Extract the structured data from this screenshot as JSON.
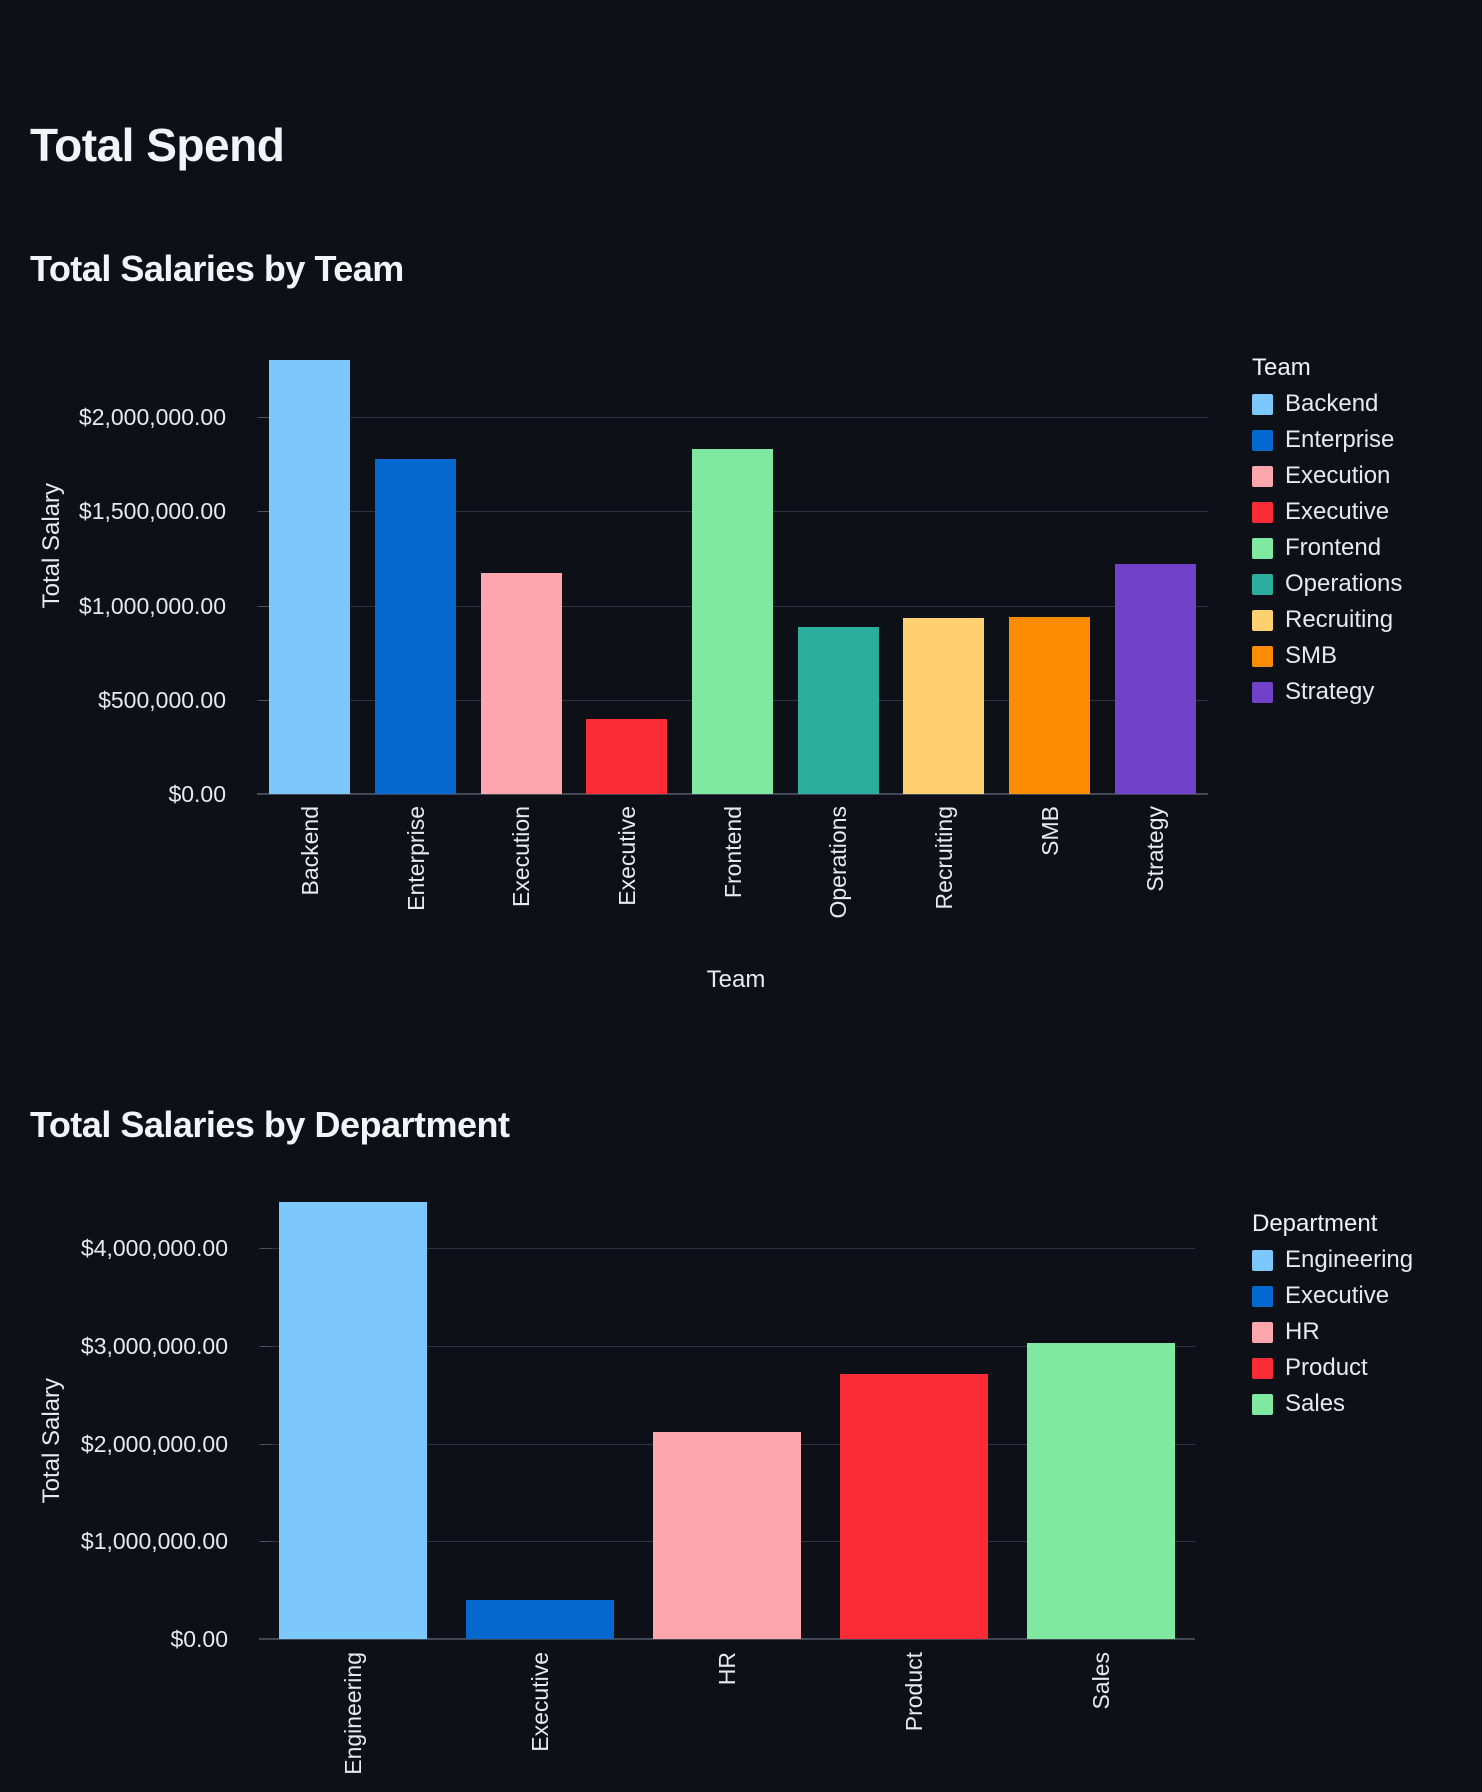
{
  "page": {
    "title": "Total Spend"
  },
  "colors": {
    "background": "#0d1117",
    "heading_text": "#f2f5f8",
    "label_text": "#e6eaef",
    "gridline": "#2e333d",
    "axis_line": "#414754"
  },
  "chart_data": [
    {
      "type": "bar",
      "title": "Total Salaries by Team",
      "xlabel": "Team",
      "ylabel": "Total Salary",
      "categories": [
        "Backend",
        "Enterprise",
        "Execution",
        "Executive",
        "Frontend",
        "Operations",
        "Recruiting",
        "SMB",
        "Strategy"
      ],
      "values": [
        2300000,
        1775000,
        1170000,
        400000,
        1830000,
        885000,
        935000,
        940000,
        1220000
      ],
      "bar_colors": [
        "#7cc7fc",
        "#0568ce",
        "#ffa5ad",
        "#fb2c36",
        "#7fe9a1",
        "#2cad9e",
        "#ffd06f",
        "#fc8c00",
        "#7141ca"
      ],
      "ylim": [
        0,
        2570000
      ],
      "yticks": [
        0,
        500000,
        1000000,
        1500000,
        2000000
      ],
      "ytick_labels": [
        "$0.00",
        "$500,000.00",
        "$1,000,000.00",
        "$1,500,000.00",
        "$2,000,000.00"
      ],
      "grid": true,
      "legend": {
        "title": "Team",
        "position": "right",
        "entries": [
          "Backend",
          "Enterprise",
          "Execution",
          "Executive",
          "Frontend",
          "Operations",
          "Recruiting",
          "SMB",
          "Strategy"
        ]
      }
    },
    {
      "type": "bar",
      "title": "Total Salaries by Department",
      "xlabel": "",
      "ylabel": "Total Salary",
      "categories": [
        "Engineering",
        "Executive",
        "HR",
        "Product",
        "Sales"
      ],
      "values": [
        4470000,
        400000,
        2120000,
        2710000,
        3030000
      ],
      "bar_colors": [
        "#7cc7fc",
        "#0568ce",
        "#ffa5ad",
        "#fb2c36",
        "#7fe9a1"
      ],
      "ylim": [
        0,
        4600000
      ],
      "yticks": [
        0,
        1000000,
        2000000,
        3000000,
        4000000
      ],
      "ytick_labels": [
        "$0.00",
        "$1,000,000.00",
        "$2,000,000.00",
        "$3,000,000.00",
        "$4,000,000.00"
      ],
      "grid": true,
      "legend": {
        "title": "Department",
        "position": "right",
        "entries": [
          "Engineering",
          "Executive",
          "HR",
          "Product",
          "Sales"
        ]
      }
    }
  ]
}
